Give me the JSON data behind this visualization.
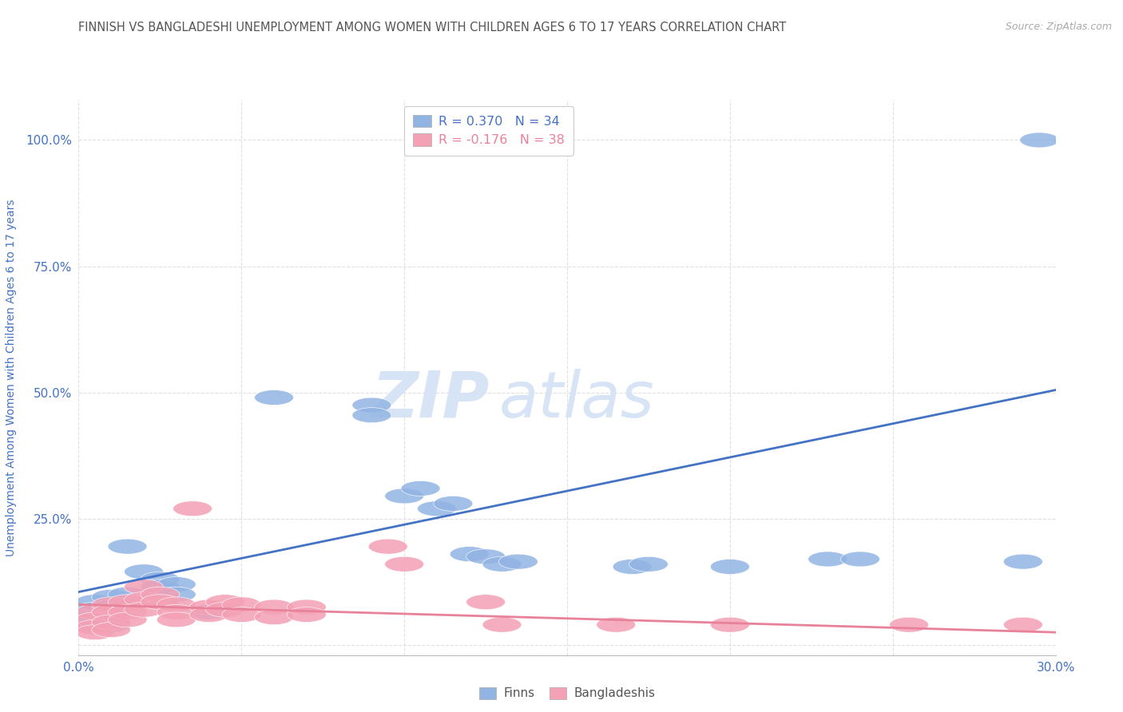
{
  "title": "FINNISH VS BANGLADESHI UNEMPLOYMENT AMONG WOMEN WITH CHILDREN AGES 6 TO 17 YEARS CORRELATION CHART",
  "source": "Source: ZipAtlas.com",
  "ylabel": "Unemployment Among Women with Children Ages 6 to 17 years",
  "xmin": 0.0,
  "xmax": 0.3,
  "ymin": -0.02,
  "ymax": 1.08,
  "xticks": [
    0.0,
    0.05,
    0.1,
    0.15,
    0.2,
    0.25,
    0.3
  ],
  "xtick_labels": [
    "0.0%",
    "",
    "",
    "",
    "",
    "",
    "30.0%"
  ],
  "yticks": [
    0.0,
    0.25,
    0.5,
    0.75,
    1.0
  ],
  "ytick_labels": [
    "",
    "25.0%",
    "50.0%",
    "75.0%",
    "100.0%"
  ],
  "legend_r_finns": "R = 0.370",
  "legend_n_finns": "N = 34",
  "legend_r_bangla": "R = -0.176",
  "legend_n_bangla": "N = 38",
  "finns_color": "#92b4e3",
  "bangla_color": "#f4a0b5",
  "line_finns_color": "#4472c4",
  "line_bangla_color": "#e8829a",
  "watermark_zip": "ZIP",
  "watermark_atlas": "atlas",
  "watermark_color": "#d8e4f0",
  "background_color": "#ffffff",
  "grid_color": "#e0e0e0",
  "title_color": "#555555",
  "tick_color": "#4472c4",
  "finns_scatter": [
    [
      0.005,
      0.085
    ],
    [
      0.005,
      0.07
    ],
    [
      0.005,
      0.055
    ],
    [
      0.005,
      0.04
    ],
    [
      0.01,
      0.095
    ],
    [
      0.01,
      0.075
    ],
    [
      0.01,
      0.06
    ],
    [
      0.01,
      0.04
    ],
    [
      0.015,
      0.195
    ],
    [
      0.015,
      0.1
    ],
    [
      0.02,
      0.145
    ],
    [
      0.025,
      0.13
    ],
    [
      0.025,
      0.115
    ],
    [
      0.03,
      0.12
    ],
    [
      0.03,
      0.1
    ],
    [
      0.04,
      0.065
    ],
    [
      0.06,
      0.49
    ],
    [
      0.09,
      0.475
    ],
    [
      0.09,
      0.455
    ],
    [
      0.1,
      0.295
    ],
    [
      0.105,
      0.31
    ],
    [
      0.11,
      0.27
    ],
    [
      0.115,
      0.28
    ],
    [
      0.12,
      0.18
    ],
    [
      0.125,
      0.175
    ],
    [
      0.13,
      0.16
    ],
    [
      0.135,
      0.165
    ],
    [
      0.17,
      0.155
    ],
    [
      0.175,
      0.16
    ],
    [
      0.2,
      0.155
    ],
    [
      0.23,
      0.17
    ],
    [
      0.24,
      0.17
    ],
    [
      0.29,
      0.165
    ],
    [
      0.295,
      1.0
    ]
  ],
  "bangla_scatter": [
    [
      0.005,
      0.065
    ],
    [
      0.005,
      0.05
    ],
    [
      0.005,
      0.035
    ],
    [
      0.005,
      0.025
    ],
    [
      0.01,
      0.08
    ],
    [
      0.01,
      0.065
    ],
    [
      0.01,
      0.045
    ],
    [
      0.01,
      0.03
    ],
    [
      0.015,
      0.085
    ],
    [
      0.015,
      0.065
    ],
    [
      0.015,
      0.05
    ],
    [
      0.02,
      0.115
    ],
    [
      0.02,
      0.09
    ],
    [
      0.02,
      0.07
    ],
    [
      0.025,
      0.1
    ],
    [
      0.025,
      0.085
    ],
    [
      0.03,
      0.08
    ],
    [
      0.03,
      0.065
    ],
    [
      0.03,
      0.05
    ],
    [
      0.035,
      0.27
    ],
    [
      0.04,
      0.075
    ],
    [
      0.04,
      0.06
    ],
    [
      0.045,
      0.085
    ],
    [
      0.045,
      0.07
    ],
    [
      0.05,
      0.08
    ],
    [
      0.05,
      0.06
    ],
    [
      0.06,
      0.075
    ],
    [
      0.06,
      0.055
    ],
    [
      0.07,
      0.075
    ],
    [
      0.07,
      0.06
    ],
    [
      0.095,
      0.195
    ],
    [
      0.1,
      0.16
    ],
    [
      0.125,
      0.085
    ],
    [
      0.13,
      0.04
    ],
    [
      0.165,
      0.04
    ],
    [
      0.2,
      0.04
    ],
    [
      0.255,
      0.04
    ],
    [
      0.29,
      0.04
    ]
  ],
  "finns_line_x": [
    0.0,
    0.3
  ],
  "finns_line_y": [
    0.105,
    0.505
  ],
  "bangla_line_x": [
    0.0,
    0.3
  ],
  "bangla_line_y": [
    0.08,
    0.025
  ]
}
